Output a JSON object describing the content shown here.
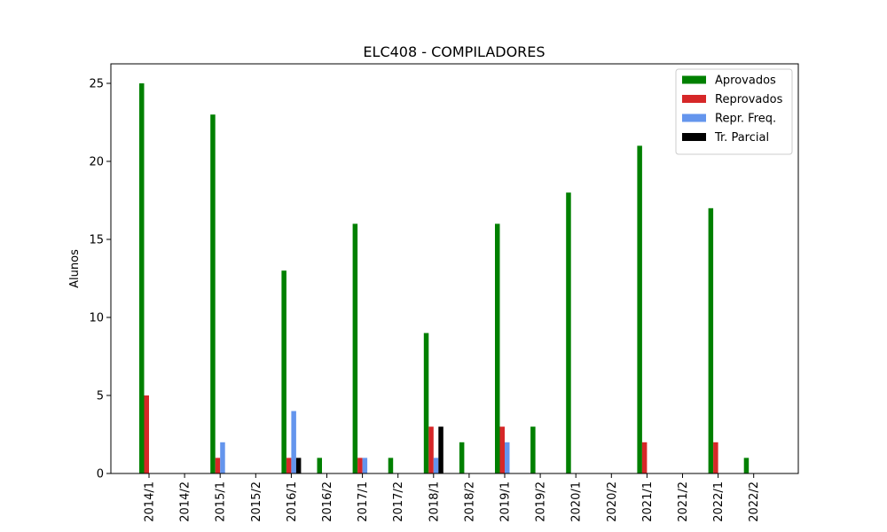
{
  "chart_data": {
    "type": "bar",
    "title": "ELC408 - COMPILADORES",
    "xlabel": "",
    "ylabel": "Alunos",
    "ylim": [
      0,
      26.25
    ],
    "yticks": [
      0,
      5,
      10,
      15,
      20,
      25
    ],
    "grid": false,
    "legend_position": "top-right",
    "categories": [
      "2014/1",
      "2014/2",
      "2015/1",
      "2015/2",
      "2016/1",
      "2016/2",
      "2017/1",
      "2017/2",
      "2018/1",
      "2018/2",
      "2019/1",
      "2019/2",
      "2020/1",
      "2020/2",
      "2021/1",
      "2021/2",
      "2022/1",
      "2022/2"
    ],
    "series": [
      {
        "name": "Aprovados",
        "color": "#008000",
        "values": [
          25,
          0,
          23,
          0,
          13,
          1,
          16,
          1,
          9,
          2,
          16,
          3,
          18,
          0,
          21,
          0,
          17,
          1
        ]
      },
      {
        "name": "Reprovados",
        "color": "#d62728",
        "values": [
          5,
          0,
          1,
          0,
          1,
          0,
          1,
          0,
          3,
          0,
          3,
          0,
          0,
          0,
          2,
          0,
          2,
          0
        ]
      },
      {
        "name": "Repr. Freq.",
        "color": "#6495ed",
        "values": [
          0,
          0,
          2,
          0,
          4,
          0,
          1,
          0,
          1,
          0,
          2,
          0,
          0,
          0,
          0,
          0,
          0,
          0
        ]
      },
      {
        "name": "Tr. Parcial",
        "color": "#000000",
        "values": [
          0,
          0,
          0,
          0,
          1,
          0,
          0,
          0,
          3,
          0,
          0,
          0,
          0,
          0,
          0,
          0,
          0,
          0
        ]
      }
    ]
  }
}
